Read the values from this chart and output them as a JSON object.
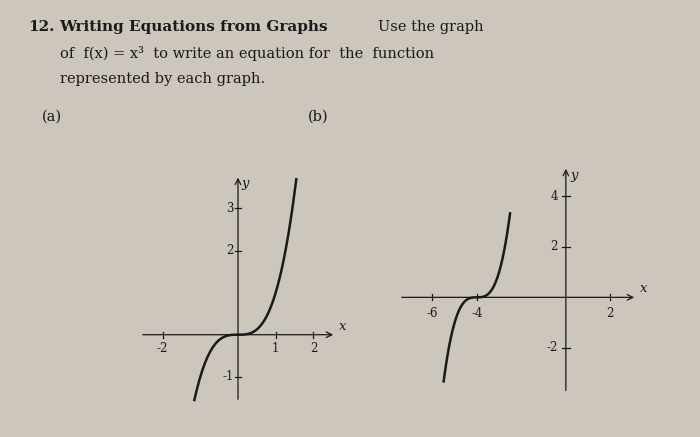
{
  "bg_color": "#ccc6bc",
  "text_color": "#1a1a1a",
  "label_a": "(a)",
  "label_b": "(b)",
  "graph_a": {
    "xlim": [
      -2.6,
      2.6
    ],
    "ylim": [
      -1.6,
      3.8
    ],
    "xticks": [
      -2,
      1,
      2
    ],
    "yticks": [
      -1,
      2,
      3
    ],
    "xlabel": "x",
    "ylabel": "y"
  },
  "graph_b": {
    "xlim": [
      -7.5,
      3.2
    ],
    "ylim": [
      -3.8,
      5.2
    ],
    "xticks": [
      -6,
      -4,
      2
    ],
    "yticks": [
      -2,
      2,
      4
    ],
    "xlabel": "x",
    "ylabel": "y"
  }
}
